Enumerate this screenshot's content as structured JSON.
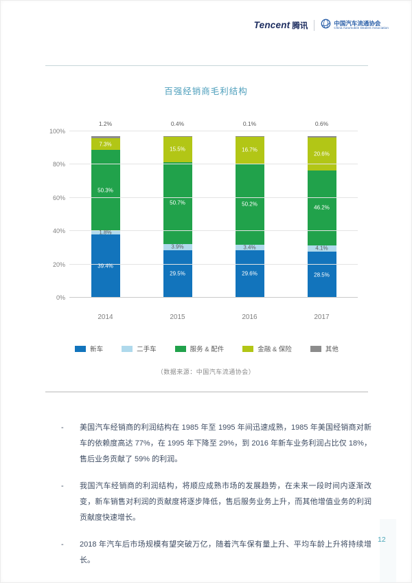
{
  "header": {
    "tencent": "Tencent",
    "tencent_cn": "腾讯",
    "cada_name": "中国汽车流通协会",
    "cada_en": "China Automobile Dealers Association"
  },
  "chart_data": {
    "type": "bar",
    "stacked": true,
    "title": "百强经销商毛利结构",
    "categories": [
      "2014",
      "2015",
      "2016",
      "2017"
    ],
    "series": [
      {
        "name": "新车",
        "color": "#1274BC",
        "label_color": "#FFFFFF",
        "label_mode": "inside",
        "values": [
          39.4,
          29.5,
          29.6,
          28.5
        ]
      },
      {
        "name": "二手车",
        "color": "#AFD9EC",
        "label_color": "#595959",
        "label_mode": "inside",
        "values": [
          1.8,
          3.9,
          3.4,
          4.1
        ]
      },
      {
        "name": "服务 & 配件",
        "color": "#21A24B",
        "label_color": "#FFFFFF",
        "label_mode": "inside",
        "values": [
          50.3,
          50.7,
          50.2,
          46.2
        ]
      },
      {
        "name": "金融 & 保险",
        "color": "#B2C616",
        "label_color": "#FFFFFF",
        "label_mode": "inside",
        "values": [
          7.3,
          15.5,
          16.7,
          20.6
        ]
      },
      {
        "name": "其他",
        "color": "#8C8C8C",
        "label_color": "#595959",
        "label_mode": "above",
        "values": [
          1.2,
          0.4,
          0.1,
          0.6
        ]
      }
    ],
    "ylim": [
      0,
      100
    ],
    "yticks": [
      0,
      20,
      40,
      60,
      80,
      100
    ],
    "ytick_suffix": "%",
    "grid": true,
    "legend_position": "bottom",
    "source_note": "（数据来源：中国汽车流通协会）"
  },
  "bullets": [
    "美国汽车经销商的利润结构在 1985 年至 1995 年间迅速成熟，1985 年美国经销商对新车的依赖度高达 77%，在 1995 年下降至 29%，到 2016 年新车业务利润占比仅 18%，售后业务贡献了 59% 的利润。",
    "我国汽车经销商的利润结构，将顺应成熟市场的发展趋势，在未来一段时间内逐渐改变，新车销售对利润的贡献度将逐步降低，售后服务业务上升，而其他增值业务的利润贡献度快速增长。",
    "2018 年汽车后市场规模有望突破万亿，随着汽车保有量上升、平均车龄上升将持续增长。"
  ],
  "bullet_marker": "-",
  "page_number": "12"
}
